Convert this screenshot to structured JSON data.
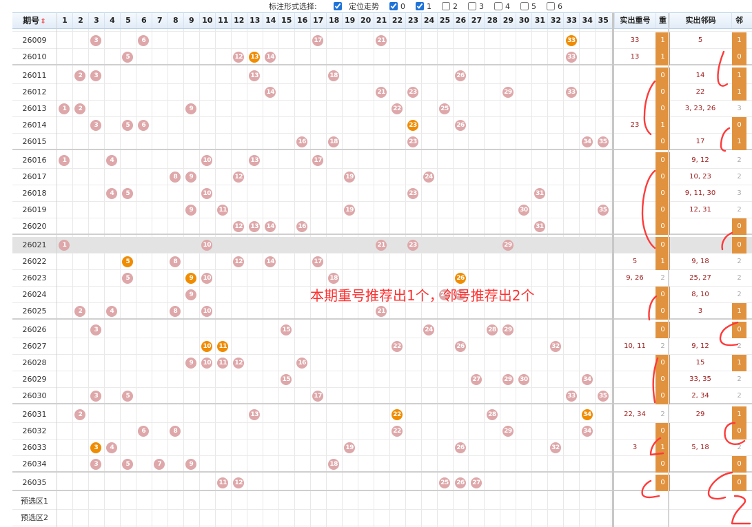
{
  "toolbar": {
    "label": "标注形式选择:",
    "options": [
      {
        "label": "定位走势",
        "checked": true
      },
      {
        "label": "0",
        "checked": true
      },
      {
        "label": "1",
        "checked": true
      },
      {
        "label": "2",
        "checked": false
      },
      {
        "label": "3",
        "checked": false
      },
      {
        "label": "4",
        "checked": false
      },
      {
        "label": "5",
        "checked": false
      },
      {
        "label": "6",
        "checked": false
      }
    ]
  },
  "header": {
    "issue": "期号",
    "sort_icon": "⇕",
    "numbers": [
      "1",
      "2",
      "3",
      "4",
      "5",
      "6",
      "7",
      "8",
      "9",
      "10",
      "11",
      "12",
      "13",
      "14",
      "15",
      "16",
      "17",
      "18",
      "19",
      "20",
      "21",
      "22",
      "23",
      "24",
      "25",
      "26",
      "27",
      "28",
      "29",
      "30",
      "31",
      "32",
      "33",
      "34",
      "35"
    ],
    "repeat_actual": "实出重号",
    "repeat": "重",
    "neighbor_actual": "实出邻码",
    "neighbor": "邻"
  },
  "rows": [
    {
      "issue": "26009",
      "balls": [
        3,
        6,
        17,
        21,
        33
      ],
      "hot": [
        33
      ],
      "repeat_actual": "33",
      "repeat": "1",
      "neighbor_actual": "5",
      "neighbor": "1"
    },
    {
      "issue": "26010",
      "balls": [
        5,
        12,
        13,
        14,
        33
      ],
      "hot": [
        13
      ],
      "repeat_actual": "13",
      "repeat": "1",
      "neighbor_actual": "",
      "neighbor": "0"
    },
    {
      "issue": "26011",
      "balls": [
        2,
        3,
        13,
        18,
        26
      ],
      "hot": [],
      "repeat_actual": "",
      "repeat": "0",
      "neighbor_actual": "14",
      "neighbor": "1"
    },
    {
      "issue": "26012",
      "balls": [
        14,
        21,
        23,
        29,
        33
      ],
      "hot": [],
      "repeat_actual": "",
      "repeat": "0",
      "neighbor_actual": "22",
      "neighbor": "1"
    },
    {
      "issue": "26013",
      "balls": [
        1,
        2,
        9,
        22,
        25
      ],
      "hot": [],
      "repeat_actual": "",
      "repeat": "0",
      "neighbor_actual": "3, 23, 26",
      "neighbor": "3"
    },
    {
      "issue": "26014",
      "balls": [
        3,
        5,
        6,
        23,
        26
      ],
      "hot": [
        23
      ],
      "repeat_actual": "23",
      "repeat": "1",
      "neighbor_actual": "",
      "neighbor": "0"
    },
    {
      "issue": "26015",
      "balls": [
        16,
        18,
        23,
        34,
        35
      ],
      "hot": [],
      "repeat_actual": "",
      "repeat": "0",
      "neighbor_actual": "17",
      "neighbor": "1"
    },
    {
      "issue": "26016",
      "balls": [
        1,
        4,
        10,
        13,
        17
      ],
      "hot": [],
      "repeat_actual": "",
      "repeat": "0",
      "neighbor_actual": "9, 12",
      "neighbor": "2"
    },
    {
      "issue": "26017",
      "balls": [
        8,
        9,
        12,
        19,
        24
      ],
      "hot": [],
      "repeat_actual": "",
      "repeat": "0",
      "neighbor_actual": "10, 23",
      "neighbor": "2"
    },
    {
      "issue": "26018",
      "balls": [
        4,
        5,
        10,
        23,
        31
      ],
      "hot": [],
      "repeat_actual": "",
      "repeat": "0",
      "neighbor_actual": "9, 11, 30",
      "neighbor": "3"
    },
    {
      "issue": "26019",
      "balls": [
        9,
        11,
        19,
        30,
        35
      ],
      "hot": [],
      "repeat_actual": "",
      "repeat": "0",
      "neighbor_actual": "12, 31",
      "neighbor": "2"
    },
    {
      "issue": "26020",
      "balls": [
        12,
        13,
        14,
        16,
        31
      ],
      "hot": [],
      "repeat_actual": "",
      "repeat": "0",
      "neighbor_actual": "",
      "neighbor": "0"
    },
    {
      "issue": "26021",
      "balls": [
        1,
        10,
        21,
        23,
        29
      ],
      "hot": [],
      "repeat_actual": "",
      "repeat": "0",
      "neighbor_actual": "",
      "neighbor": "0"
    },
    {
      "issue": "26022",
      "balls": [
        5,
        8,
        12,
        14,
        17
      ],
      "hot": [
        5
      ],
      "repeat_actual": "5",
      "repeat": "1",
      "neighbor_actual": "9, 18",
      "neighbor": "2"
    },
    {
      "issue": "26023",
      "balls": [
        5,
        9,
        10,
        18,
        26
      ],
      "hot": [
        9,
        26
      ],
      "repeat_actual": "9, 26",
      "repeat": "2",
      "neighbor_actual": "25, 27",
      "neighbor": "2"
    },
    {
      "issue": "26024",
      "balls": [
        9,
        25,
        26
      ],
      "hot": [],
      "repeat_actual": "",
      "repeat": "0",
      "neighbor_actual": "8, 10",
      "neighbor": "2"
    },
    {
      "issue": "26025",
      "balls": [
        2,
        4,
        8,
        10,
        21
      ],
      "hot": [],
      "repeat_actual": "",
      "repeat": "0",
      "neighbor_actual": "3",
      "neighbor": "1"
    },
    {
      "issue": "26026",
      "balls": [
        3,
        15,
        24,
        28,
        29
      ],
      "hot": [],
      "repeat_actual": "",
      "repeat": "0",
      "neighbor_actual": "",
      "neighbor": "0"
    },
    {
      "issue": "26027",
      "balls": [
        10,
        11,
        22,
        26,
        32
      ],
      "hot": [
        10,
        11
      ],
      "repeat_actual": "10, 11",
      "repeat": "2",
      "neighbor_actual": "9, 12",
      "neighbor": "2"
    },
    {
      "issue": "26028",
      "balls": [
        9,
        10,
        11,
        12,
        16
      ],
      "hot": [],
      "repeat_actual": "",
      "repeat": "0",
      "neighbor_actual": "15",
      "neighbor": "1"
    },
    {
      "issue": "26029",
      "balls": [
        15,
        27,
        29,
        30,
        34
      ],
      "hot": [],
      "repeat_actual": "",
      "repeat": "0",
      "neighbor_actual": "33, 35",
      "neighbor": "2"
    },
    {
      "issue": "26030",
      "balls": [
        3,
        5,
        17,
        33,
        35
      ],
      "hot": [],
      "repeat_actual": "",
      "repeat": "0",
      "neighbor_actual": "2, 34",
      "neighbor": "2"
    },
    {
      "issue": "26031",
      "balls": [
        2,
        13,
        22,
        28,
        34
      ],
      "hot": [
        22,
        34
      ],
      "repeat_actual": "22, 34",
      "repeat": "2",
      "neighbor_actual": "29",
      "neighbor": "1"
    },
    {
      "issue": "26032",
      "balls": [
        6,
        8,
        22,
        29,
        34
      ],
      "hot": [],
      "repeat_actual": "",
      "repeat": "0",
      "neighbor_actual": "",
      "neighbor": "0"
    },
    {
      "issue": "26033",
      "balls": [
        3,
        4,
        19,
        26,
        32
      ],
      "hot": [
        3
      ],
      "repeat_actual": "3",
      "repeat": "1",
      "neighbor_actual": "5, 18",
      "neighbor": "2"
    },
    {
      "issue": "26034",
      "balls": [
        3,
        5,
        7,
        9,
        18
      ],
      "hot": [],
      "repeat_actual": "",
      "repeat": "0",
      "neighbor_actual": "",
      "neighbor": "0"
    },
    {
      "issue": "26035",
      "balls": [
        11,
        12,
        25,
        26,
        27
      ],
      "hot": [],
      "repeat_actual": "",
      "repeat": "0",
      "neighbor_actual": "",
      "neighbor": "0"
    },
    {
      "issue": "预选区1",
      "balls": [],
      "hot": [],
      "repeat_actual": "",
      "repeat": "",
      "neighbor_actual": "",
      "neighbor": ""
    },
    {
      "issue": "预选区2",
      "balls": [],
      "hot": [],
      "repeat_actual": "",
      "repeat": "",
      "neighbor_actual": "",
      "neighbor": ""
    }
  ],
  "annotation": "本期重号推荐出1个，邻号推荐出2个",
  "colors": {
    "ball": "#dea7a9",
    "ball_hot": "#f08c00",
    "tag_orange": "#e0923e",
    "header_bg": "#e2ecf7",
    "annotation_red": "#ff3030"
  }
}
